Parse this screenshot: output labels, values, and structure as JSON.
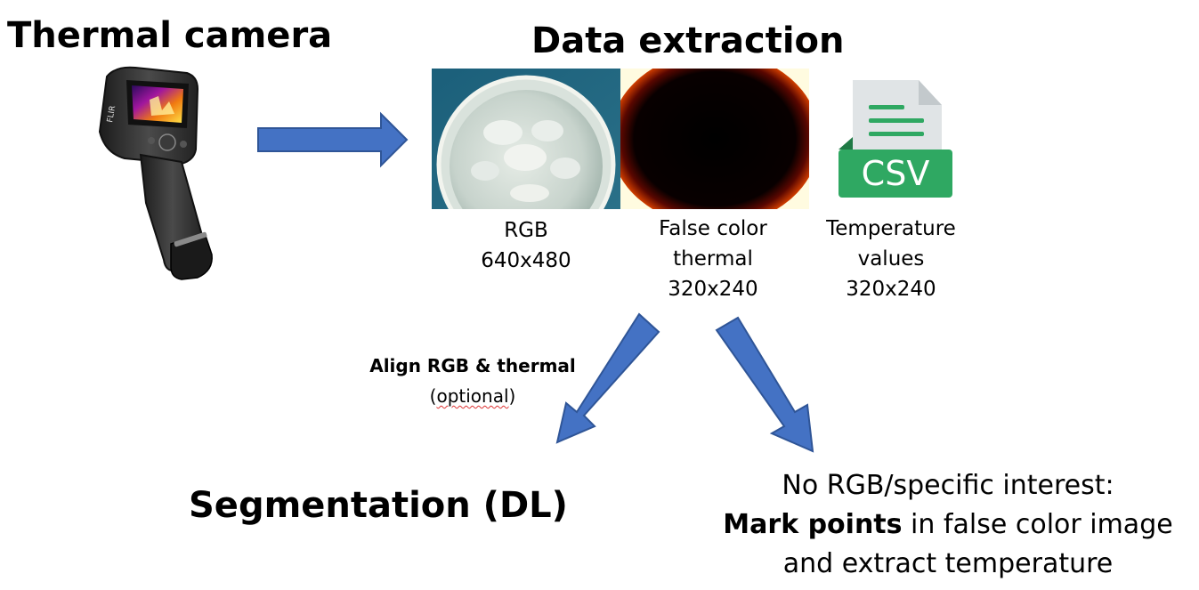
{
  "titles": {
    "camera": "Thermal camera",
    "extraction": "Data extraction",
    "segmentation": "Segmentation (DL)"
  },
  "captions": {
    "rgb": [
      "RGB",
      "640x480"
    ],
    "thermal": [
      "False color",
      "thermal",
      "320x240"
    ],
    "csv": [
      "Temperature",
      "values",
      "320x240"
    ]
  },
  "camera_brand": "FLIR",
  "csv_icon_label": "CSV",
  "align_note": {
    "bold": "Align RGB & thermal",
    "open": "(",
    "squiggly": "optional",
    "close": ")"
  },
  "right_note": {
    "line1": "No RGB/specific interest:",
    "line2_bold": "Mark points",
    "line2_rest": " in false color image",
    "line3": "and extract temperature"
  },
  "colors": {
    "arrow_fill": "#4472c4",
    "arrow_stroke": "#2f5597",
    "csv_green": "#2fa862"
  },
  "icons": [
    "thermal-camera-icon",
    "csv-file-icon",
    "rgb-photo",
    "false-color-thermal-image"
  ]
}
